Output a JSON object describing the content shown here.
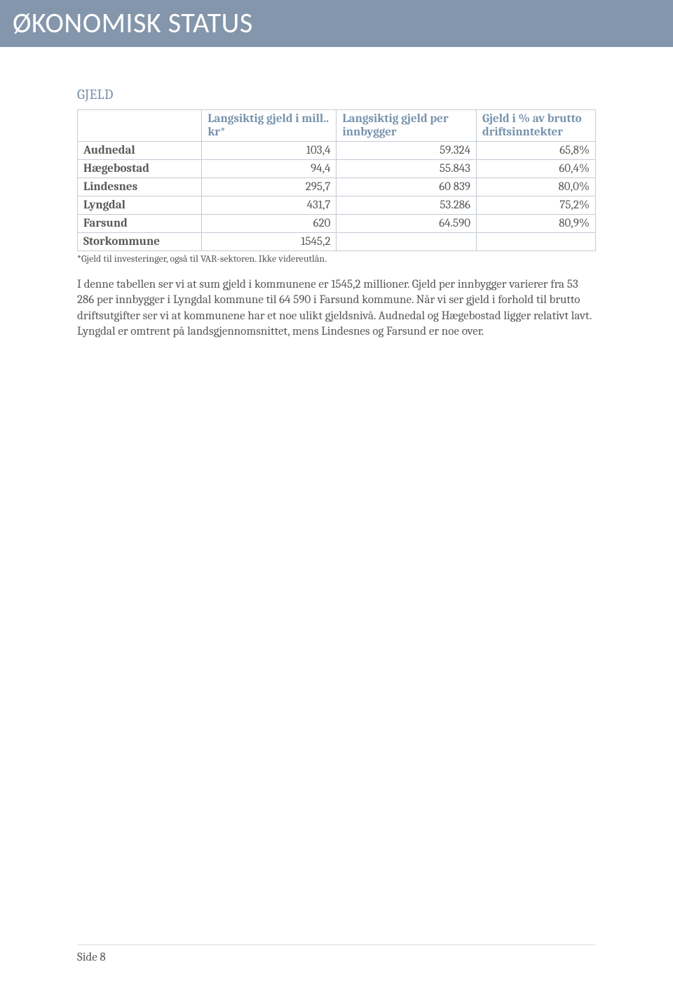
{
  "header": {
    "title": "ØKONOMISK STATUS"
  },
  "section": {
    "title": "GJELD"
  },
  "table": {
    "columns": [
      {
        "label": ""
      },
      {
        "label": "Langsiktig gjeld i mill.. kr*"
      },
      {
        "label": "Langsiktig gjeld per innbygger"
      },
      {
        "label": "Gjeld i % av brutto driftsinntekter"
      }
    ],
    "rows": [
      {
        "label": "Audnedal",
        "c1": "103,4",
        "c2": "59.324",
        "c3": "65,8%"
      },
      {
        "label": "Hægebostad",
        "c1": "94,4",
        "c2": "55.843",
        "c3": "60,4%"
      },
      {
        "label": "Lindesnes",
        "c1": "295,7",
        "c2": "60 839",
        "c3": "80,0%"
      },
      {
        "label": "Lyngdal",
        "c1": "431,7",
        "c2": "53.286",
        "c3": "75,2%"
      },
      {
        "label": "Farsund",
        "c1": "620",
        "c2": "64.590",
        "c3": "80,9%"
      },
      {
        "label": "Storkommune",
        "c1": "1545,2",
        "c2": "",
        "c3": ""
      }
    ],
    "footnote": "*Gjeld til investeringer, også til VAR-sektoren. Ikke videreutlån.",
    "border_color": "#c3cbd6",
    "header_text_color": "#7792ac",
    "body_text_color": "#595959",
    "font_size_pt": 17
  },
  "paragraph": {
    "text": "I denne tabellen ser vi at sum gjeld i kommunene er 1545,2 millioner. Gjeld per innbygger varierer fra 53 286 per innbygger i Lyngdal kommune til 64 590 i Farsund kommune. Når vi ser gjeld i forhold til brutto driftsutgifter ser vi at kommunene har et noe ulikt gjeldsnivå. Audnedal og Hægebostad ligger relativt lavt. Lyngdal er omtrent på landsgjennomsnittet, mens Lindesnes og Farsund er noe over."
  },
  "footer": {
    "text": "Side 8"
  },
  "colors": {
    "header_bg": "#8496ab",
    "header_fg": "#ffffff",
    "accent": "#7792ac",
    "body_text": "#595959",
    "rule": "#d9dde3"
  }
}
